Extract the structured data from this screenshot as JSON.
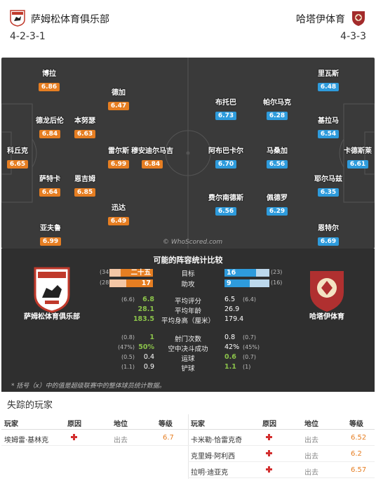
{
  "header": {
    "home_team": "萨姆松体育俱乐部",
    "away_team": "哈塔伊体育",
    "home_formation": "4-2-3-1",
    "away_formation": "4-3-3"
  },
  "pitch": {
    "watermark": "© WhoScored.com",
    "home_players": [
      {
        "name": "博拉",
        "rating": "6.86"
      },
      {
        "name": "德加",
        "rating": "6.47"
      },
      {
        "name": "德龙后伦",
        "rating": "6.84"
      },
      {
        "name": "本努瑟",
        "rating": "6.63"
      },
      {
        "name": "科丘克",
        "rating": "6.65"
      },
      {
        "name": "雷尔斯",
        "rating": "6.99"
      },
      {
        "name": "穆安迪尔马吉",
        "rating": "6.84"
      },
      {
        "name": "萨特卡",
        "rating": "6.64"
      },
      {
        "name": "恩吉姆",
        "rating": "6.85"
      },
      {
        "name": "迅达",
        "rating": "6.49"
      },
      {
        "name": "亚夫鲁",
        "rating": "6.99"
      }
    ],
    "away_players": [
      {
        "name": "里瓦斯",
        "rating": "6.48"
      },
      {
        "name": "布托巴",
        "rating": "6.73"
      },
      {
        "name": "帕尔马克",
        "rating": "6.28"
      },
      {
        "name": "基拉马",
        "rating": "6.54"
      },
      {
        "name": "阿布巴卡尔",
        "rating": "6.70"
      },
      {
        "name": "马桑加",
        "rating": "6.56"
      },
      {
        "name": "卡德斯莱",
        "rating": "6.61"
      },
      {
        "name": "耶尔马兹",
        "rating": "6.35"
      },
      {
        "name": "费尔南德斯",
        "rating": "6.56"
      },
      {
        "name": "佩德罗",
        "rating": "6.29"
      },
      {
        "name": "恩特尔",
        "rating": "6.69"
      }
    ]
  },
  "stats": {
    "title": "可能的阵容统计比较",
    "home_label": "萨姆松体育俱乐部",
    "away_label": "哈塔伊体育",
    "bars": [
      {
        "label": "目标",
        "home_value": "二十五",
        "home_paren": "(34)",
        "away_value": "16",
        "away_paren": "(23)",
        "home_frac": 0.74,
        "away_frac": 0.7
      },
      {
        "label": "助攻",
        "home_value": "17",
        "home_paren": "(28)",
        "away_value": "9",
        "away_paren": "(16)",
        "home_frac": 0.61,
        "away_frac": 0.56
      }
    ],
    "rows": [
      {
        "label": "平均评分",
        "home_value": "6.8",
        "home_paren": "(6.6)",
        "away_value": "6.5",
        "away_paren": "(6.4)"
      },
      {
        "label": "平均年龄",
        "home_value": "28.1",
        "home_paren": "",
        "away_value": "26.9",
        "away_paren": ""
      },
      {
        "label": "平均身高（厘米）",
        "home_value": "183.5",
        "home_paren": "",
        "away_value": "179.4",
        "away_paren": ""
      },
      {
        "label": "射门次数",
        "home_value": "1",
        "home_paren": "(0.8)",
        "away_value": "0.8",
        "away_paren": "(0.7)"
      },
      {
        "label": "空中决斗成功",
        "home_value": "50%",
        "home_paren": "(47%)",
        "away_value": "42%",
        "away_paren": "(45%)"
      },
      {
        "label": "运球",
        "home_value": "0.4",
        "home_paren": "(0.5)",
        "away_value": "0.6",
        "away_paren": "(0.7)"
      },
      {
        "label": "铲球",
        "home_value": "0.9",
        "home_paren": "(1.1)",
        "away_value": "1.1",
        "away_paren": "(1)"
      }
    ],
    "footnote": "* 括号（x）中的值是超级联赛中的整体球员统计数据。"
  },
  "missing": {
    "title": "失踪的玩家",
    "headers": {
      "player": "玩家",
      "reason": "原因",
      "status": "地位",
      "grade": "等级"
    },
    "home": [
      {
        "player": "埃姆雷·基林克",
        "status": "出去",
        "grade": "6.7"
      }
    ],
    "away": [
      {
        "player": "卡米勒·恰雷克奇",
        "status": "出去",
        "grade": "6.52"
      },
      {
        "player": "克里姆·阿利西",
        "status": "出去",
        "grade": "6.2"
      },
      {
        "player": "拉明·迪亚克",
        "status": "出去",
        "grade": "6.57"
      }
    ]
  },
  "colors": {
    "home": "#e67e22",
    "away": "#2e9bdc",
    "pitch": "#3a3a3a",
    "panel": "#2f2f2f"
  }
}
